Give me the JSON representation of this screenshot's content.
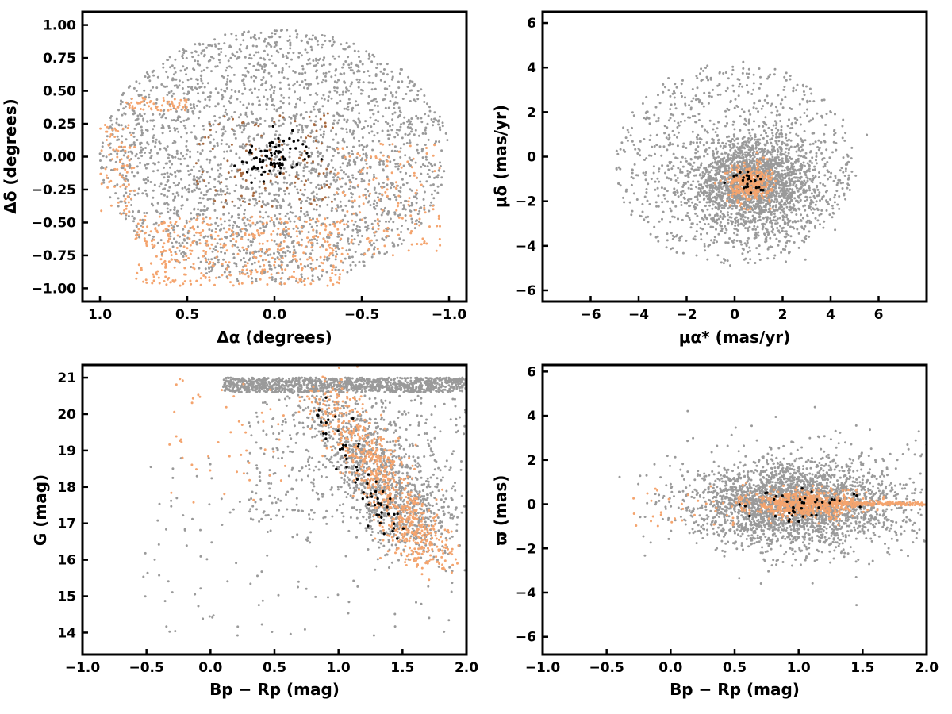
{
  "colors": {
    "field": "#9a9a9a",
    "members": "#f4a46e",
    "dark_members": "#a86a40",
    "core": "#000000"
  },
  "chart_data": [
    {
      "id": "sky",
      "type": "scatter",
      "xlabel": "Δα (degrees)",
      "ylabel": "Δδ (degrees)",
      "xlim": [
        1.1,
        -1.1
      ],
      "ylim": [
        -1.1,
        1.1
      ],
      "x_reversed": true,
      "xticks": [
        1.0,
        0.5,
        0.0,
        -0.5,
        -1.0
      ],
      "xtick_labels": [
        "1.0",
        "0.5",
        "0.0",
        "−0.5",
        "−1.0"
      ],
      "yticks": [
        -1.0,
        -0.75,
        -0.5,
        -0.25,
        0.0,
        0.25,
        0.5,
        0.75,
        1.0
      ],
      "ytick_labels": [
        "−1.00",
        "−0.75",
        "−0.50",
        "−0.25",
        "0.00",
        "0.25",
        "0.50",
        "0.75",
        "1.00"
      ],
      "series": [
        {
          "role": "field",
          "color": "#9a9a9a",
          "n": 2600,
          "dist": "disk",
          "cx": 0.0,
          "cy": 0.0,
          "rx": 1.0,
          "ry": 0.97
        },
        {
          "role": "members",
          "color": "#f4a46e",
          "n": 420,
          "dist": "box",
          "x0": -0.4,
          "x1": 0.8,
          "y0": -0.98,
          "y1": -0.45
        },
        {
          "role": "members",
          "color": "#f4a46e",
          "n": 140,
          "dist": "box",
          "x0": -0.95,
          "x1": -0.35,
          "y0": -0.75,
          "y1": 0.1
        },
        {
          "role": "members",
          "color": "#f4a46e",
          "n": 80,
          "dist": "box",
          "x0": 0.8,
          "x1": 1.0,
          "y0": -0.45,
          "y1": 0.25
        },
        {
          "role": "members",
          "color": "#f4a46e",
          "n": 60,
          "dist": "box",
          "x0": 0.5,
          "x1": 0.85,
          "y0": 0.35,
          "y1": 0.45
        },
        {
          "role": "members",
          "color": "#a86a40",
          "n": 120,
          "dist": "box",
          "x0": -0.35,
          "x1": 0.45,
          "y0": -0.4,
          "y1": 0.35
        },
        {
          "role": "core",
          "color": "#000000",
          "n": 80,
          "dist": "gauss",
          "cx": 0.0,
          "cy": 0.0,
          "sx": 0.09,
          "sy": 0.08
        }
      ]
    },
    {
      "id": "pm",
      "type": "scatter",
      "xlabel": "μα* (mas/yr)",
      "ylabel": "μδ (mas/yr)",
      "xlim": [
        -8,
        8
      ],
      "ylim": [
        -6.5,
        6.5
      ],
      "xticks": [
        -6,
        -4,
        -2,
        0,
        2,
        4,
        6
      ],
      "xtick_labels": [
        "−6",
        "−4",
        "−2",
        "0",
        "2",
        "4",
        "6"
      ],
      "yticks": [
        -6,
        -4,
        -2,
        0,
        2,
        4,
        6
      ],
      "ytick_labels": [
        "−6",
        "−4",
        "−2",
        "0",
        "2",
        "4",
        "6"
      ],
      "series": [
        {
          "role": "field",
          "color": "#9a9a9a",
          "n": 2200,
          "dist": "gauss",
          "cx": 0.8,
          "cy": -1.2,
          "sx": 1.3,
          "sy": 1.0
        },
        {
          "role": "field",
          "color": "#9a9a9a",
          "n": 900,
          "dist": "disk",
          "cx": 0.0,
          "cy": -0.3,
          "rx": 5.0,
          "ry": 4.6
        },
        {
          "role": "members",
          "color": "#f4a46e",
          "n": 320,
          "dist": "gauss",
          "cx": 0.6,
          "cy": -1.2,
          "sx": 0.45,
          "sy": 0.42
        },
        {
          "role": "core",
          "color": "#000000",
          "n": 25,
          "dist": "gauss",
          "cx": 0.6,
          "cy": -1.1,
          "sx": 0.35,
          "sy": 0.3
        }
      ]
    },
    {
      "id": "cmd",
      "type": "scatter",
      "xlabel": "Bp − Rp (mag)",
      "ylabel": "G (mag)",
      "xlim": [
        -1.0,
        2.0
      ],
      "ylim": [
        13.4,
        21.35
      ],
      "xticks": [
        -1.0,
        -0.5,
        0.0,
        0.5,
        1.0,
        1.5,
        2.0
      ],
      "xtick_labels": [
        "−1.0",
        "−0.5",
        "0.0",
        "0.5",
        "1.0",
        "1.5",
        "2.0"
      ],
      "yticks": [
        14,
        15,
        16,
        17,
        18,
        19,
        20,
        21
      ],
      "ytick_labels": [
        "14",
        "15",
        "16",
        "17",
        "18",
        "19",
        "20",
        "21"
      ],
      "series": [
        {
          "role": "field",
          "color": "#9a9a9a",
          "n": 1100,
          "dist": "box",
          "x0": 0.1,
          "x1": 2.0,
          "y0": 20.6,
          "y1": 21.0
        },
        {
          "role": "field",
          "color": "#9a9a9a",
          "n": 1000,
          "dist": "sequence",
          "xa": 1.0,
          "ya": 20.3,
          "xb": 1.65,
          "yb": 16.5,
          "spread": 0.2
        },
        {
          "role": "field",
          "color": "#9a9a9a",
          "n": 400,
          "dist": "box",
          "x0": 0.3,
          "x1": 2.0,
          "y0": 17.0,
          "y1": 20.5
        },
        {
          "role": "field",
          "color": "#9a9a9a",
          "n": 140,
          "dist": "box",
          "x0": -0.6,
          "x1": 2.0,
          "y0": 13.8,
          "y1": 18.8
        },
        {
          "role": "members",
          "color": "#f4a46e",
          "n": 700,
          "dist": "sequence",
          "xa": 0.9,
          "ya": 20.8,
          "xb": 1.75,
          "yb": 15.9,
          "spread": 0.12
        },
        {
          "role": "members",
          "color": "#f4a46e",
          "n": 50,
          "dist": "box",
          "x0": -0.4,
          "x1": 0.6,
          "y0": 17.5,
          "y1": 21.0
        },
        {
          "role": "core",
          "color": "#000000",
          "n": 60,
          "dist": "sequence",
          "xa": 0.85,
          "ya": 20.2,
          "xb": 1.45,
          "yb": 16.6,
          "spread": 0.08
        }
      ]
    },
    {
      "id": "plx",
      "type": "scatter",
      "xlabel": "Bp − Rp (mag)",
      "ylabel": "ϖ (mas)",
      "xlim": [
        -1.0,
        2.0
      ],
      "ylim": [
        -6.8,
        6.3
      ],
      "xticks": [
        -1.0,
        -0.5,
        0.0,
        0.5,
        1.0,
        1.5,
        2.0
      ],
      "xtick_labels": [
        "−1.0",
        "−0.5",
        "0.0",
        "0.5",
        "1.0",
        "1.5",
        "2.0"
      ],
      "yticks": [
        -6,
        -4,
        -2,
        0,
        2,
        4,
        6
      ],
      "ytick_labels": [
        "−6",
        "−4",
        "−2",
        "0",
        "2",
        "4",
        "6"
      ],
      "series": [
        {
          "role": "field",
          "color": "#9a9a9a",
          "n": 2400,
          "dist": "gauss",
          "cx": 0.95,
          "cy": 0.0,
          "sx": 0.38,
          "sy": 0.9
        },
        {
          "role": "field",
          "color": "#9a9a9a",
          "n": 500,
          "dist": "gauss",
          "cx": 1.2,
          "cy": 0.2,
          "sx": 0.55,
          "sy": 1.4
        },
        {
          "role": "members",
          "color": "#f4a46e",
          "n": 550,
          "dist": "gauss",
          "cx": 1.05,
          "cy": 0.0,
          "sx": 0.22,
          "sy": 0.3
        },
        {
          "role": "members",
          "color": "#f4a46e",
          "n": 160,
          "dist": "box",
          "x0": 1.2,
          "x1": 2.0,
          "y0": -0.05,
          "y1": 0.1
        },
        {
          "role": "members",
          "color": "#f4a46e",
          "n": 40,
          "dist": "box",
          "x0": -0.3,
          "x1": 0.9,
          "y0": -1.0,
          "y1": 1.0
        },
        {
          "role": "core",
          "color": "#000000",
          "n": 40,
          "dist": "gauss",
          "cx": 1.0,
          "cy": 0.0,
          "sx": 0.2,
          "sy": 0.4
        }
      ]
    }
  ]
}
